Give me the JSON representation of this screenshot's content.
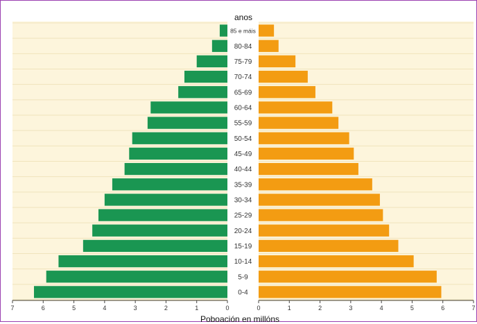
{
  "chart_data": {
    "type": "bar",
    "orientation": "horizontal-mirrored",
    "title": "anos",
    "xlabel": "Poboación en millóns",
    "xlim": [
      0,
      7
    ],
    "xticks": [
      "7",
      "6",
      "5",
      "4",
      "3",
      "2",
      "1",
      "0",
      "0",
      "1",
      "2",
      "3",
      "4",
      "5",
      "6",
      "7"
    ],
    "categories": [
      "85 e máis",
      "80-84",
      "75-79",
      "70-74",
      "65-69",
      "60-64",
      "55-59",
      "50-54",
      "45-49",
      "40-44",
      "35-39",
      "30-34",
      "25-29",
      "20-24",
      "15-19",
      "10-14",
      "5-9",
      "0-4"
    ],
    "series": [
      {
        "values": [
          0.25,
          0.5,
          1.0,
          1.4,
          1.6,
          2.5,
          2.6,
          3.1,
          3.2,
          3.35,
          3.75,
          4.0,
          4.2,
          4.4,
          4.7,
          5.5,
          5.9,
          6.3
        ]
      },
      {
        "values": [
          0.5,
          0.65,
          1.2,
          1.6,
          1.85,
          2.4,
          2.6,
          2.95,
          3.1,
          3.25,
          3.7,
          3.95,
          4.05,
          4.25,
          4.55,
          5.05,
          5.8,
          5.95
        ]
      }
    ],
    "colors": {
      "left": "#1a9652",
      "right": "#f39c12",
      "background": "#fdf5dc",
      "grid": "#f0e3bb"
    },
    "grid": true
  }
}
